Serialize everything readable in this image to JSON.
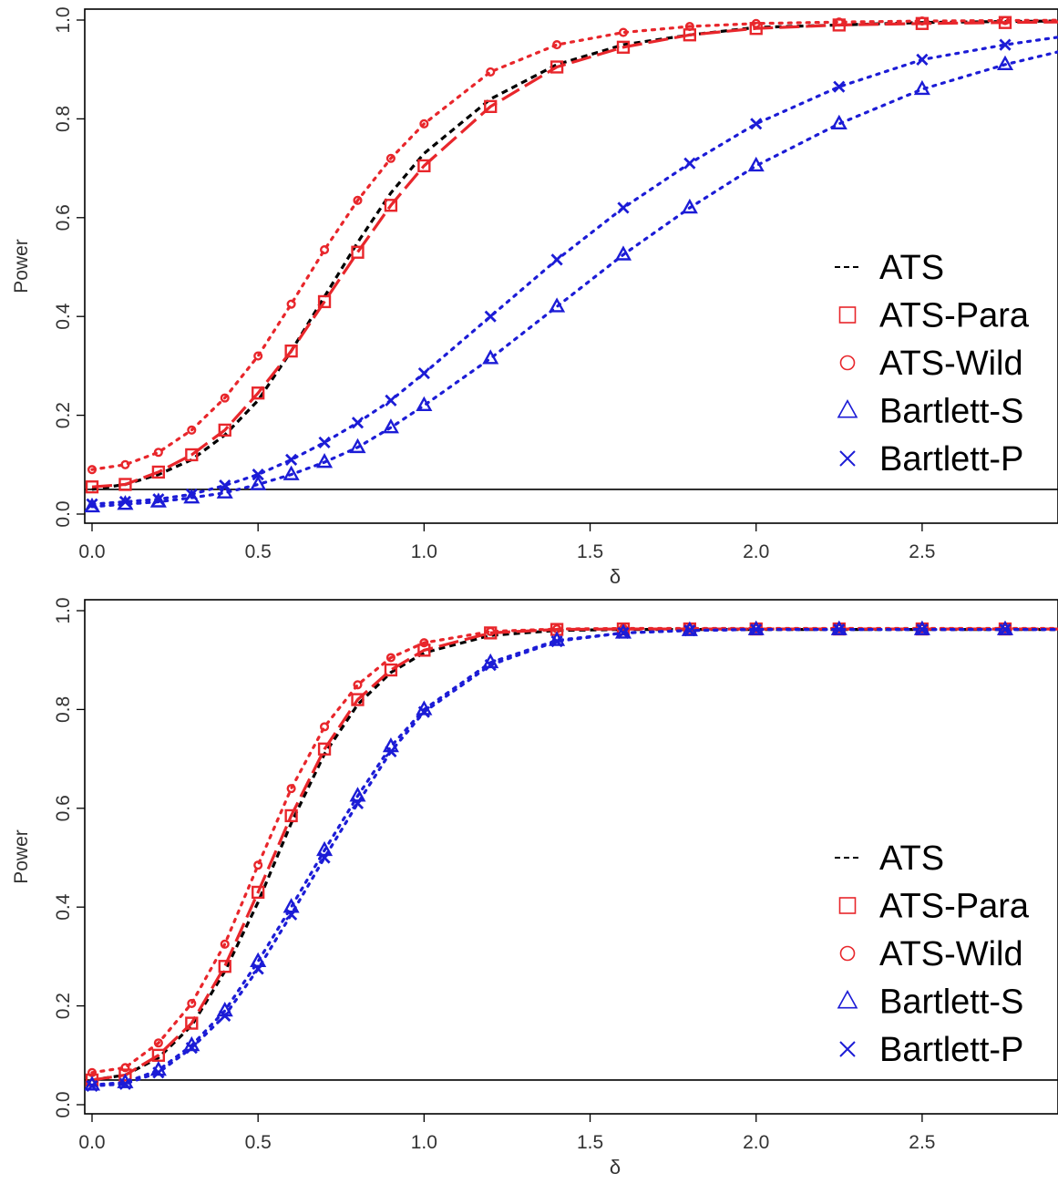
{
  "chart_data": [
    {
      "type": "line",
      "title": "",
      "xlabel": "δ",
      "ylabel": "Power",
      "xlim": [
        0,
        2.9
      ],
      "ylim": [
        0,
        1
      ],
      "x_ticks": [
        "0.0",
        "0.5",
        "1.0",
        "1.5",
        "2.0",
        "2.5"
      ],
      "y_ticks": [
        "0.0",
        "0.2",
        "0.4",
        "0.6",
        "0.8",
        "1.0"
      ],
      "reference_line": 0.05,
      "legend_position": "right",
      "x": [
        0,
        0.1,
        0.2,
        0.3,
        0.4,
        0.5,
        0.6,
        0.7,
        0.8,
        0.9,
        1.0,
        1.2,
        1.4,
        1.6,
        1.8,
        2.0,
        2.25,
        2.5,
        2.75
      ],
      "series": [
        {
          "name": "ATS",
          "color": "#000000",
          "line": "dashed",
          "marker": "none",
          "values": [
            0.05,
            0.06,
            0.08,
            0.11,
            0.16,
            0.23,
            0.33,
            0.44,
            0.55,
            0.65,
            0.73,
            0.84,
            0.91,
            0.95,
            0.97,
            0.985,
            0.99,
            0.995,
            0.997
          ]
        },
        {
          "name": "ATS-Para",
          "color": "#e8262b",
          "line": "longdash",
          "marker": "square",
          "values": [
            0.055,
            0.06,
            0.085,
            0.12,
            0.17,
            0.245,
            0.33,
            0.43,
            0.53,
            0.625,
            0.705,
            0.825,
            0.905,
            0.945,
            0.97,
            0.983,
            0.99,
            0.993,
            0.995
          ]
        },
        {
          "name": "ATS-Wild",
          "color": "#e8262b",
          "line": "dotted",
          "marker": "circle",
          "values": [
            0.09,
            0.1,
            0.125,
            0.17,
            0.235,
            0.32,
            0.425,
            0.535,
            0.635,
            0.72,
            0.79,
            0.895,
            0.95,
            0.975,
            0.987,
            0.993,
            0.996,
            0.998,
            0.999
          ]
        },
        {
          "name": "Bartlett-S",
          "color": "#1c1cd6",
          "line": "dotted",
          "marker": "triangle",
          "values": [
            0.015,
            0.02,
            0.025,
            0.033,
            0.043,
            0.06,
            0.08,
            0.105,
            0.135,
            0.175,
            0.22,
            0.315,
            0.42,
            0.525,
            0.62,
            0.705,
            0.79,
            0.86,
            0.91
          ]
        },
        {
          "name": "Bartlett-P",
          "color": "#1c1cd6",
          "line": "dotted",
          "marker": "cross",
          "values": [
            0.02,
            0.025,
            0.03,
            0.04,
            0.058,
            0.08,
            0.11,
            0.145,
            0.185,
            0.23,
            0.285,
            0.4,
            0.515,
            0.62,
            0.71,
            0.79,
            0.865,
            0.92,
            0.95
          ]
        }
      ]
    },
    {
      "type": "line",
      "title": "",
      "xlabel": "δ",
      "ylabel": "Power",
      "xlim": [
        0,
        2.9
      ],
      "ylim": [
        0,
        1
      ],
      "x_ticks": [
        "0.0",
        "0.5",
        "1.0",
        "1.5",
        "2.0",
        "2.5"
      ],
      "y_ticks": [
        "0.0",
        "0.2",
        "0.4",
        "0.6",
        "0.8",
        "1.0"
      ],
      "reference_line": 0.05,
      "legend_position": "right",
      "x": [
        0,
        0.1,
        0.2,
        0.3,
        0.4,
        0.5,
        0.6,
        0.7,
        0.8,
        0.9,
        1.0,
        1.2,
        1.4,
        1.6,
        1.8,
        2.0,
        2.25,
        2.5,
        2.75
      ],
      "series": [
        {
          "name": "ATS",
          "color": "#000000",
          "line": "dashed",
          "marker": "none",
          "values": [
            0.05,
            0.06,
            0.095,
            0.16,
            0.27,
            0.41,
            0.57,
            0.71,
            0.81,
            0.875,
            0.915,
            0.95,
            0.96,
            0.962,
            0.962,
            0.962,
            0.962,
            0.962,
            0.962
          ]
        },
        {
          "name": "ATS-Para",
          "color": "#e8262b",
          "line": "longdash",
          "marker": "square",
          "values": [
            0.05,
            0.06,
            0.1,
            0.165,
            0.28,
            0.43,
            0.585,
            0.72,
            0.82,
            0.88,
            0.92,
            0.955,
            0.962,
            0.963,
            0.963,
            0.963,
            0.963,
            0.963,
            0.963
          ]
        },
        {
          "name": "ATS-Wild",
          "color": "#e8262b",
          "line": "dotted",
          "marker": "circle",
          "values": [
            0.065,
            0.075,
            0.125,
            0.205,
            0.325,
            0.485,
            0.64,
            0.765,
            0.85,
            0.905,
            0.935,
            0.958,
            0.963,
            0.964,
            0.964,
            0.964,
            0.964,
            0.964,
            0.964
          ]
        },
        {
          "name": "Bartlett-S",
          "color": "#1c1cd6",
          "line": "dotted",
          "marker": "triangle",
          "values": [
            0.04,
            0.045,
            0.07,
            0.12,
            0.19,
            0.29,
            0.4,
            0.515,
            0.625,
            0.725,
            0.8,
            0.895,
            0.94,
            0.955,
            0.96,
            0.962,
            0.962,
            0.962,
            0.962
          ]
        },
        {
          "name": "Bartlett-P",
          "color": "#1c1cd6",
          "line": "dotted",
          "marker": "cross",
          "values": [
            0.038,
            0.042,
            0.065,
            0.115,
            0.18,
            0.275,
            0.385,
            0.5,
            0.61,
            0.715,
            0.795,
            0.89,
            0.938,
            0.955,
            0.96,
            0.962,
            0.962,
            0.962,
            0.962
          ]
        }
      ]
    }
  ]
}
